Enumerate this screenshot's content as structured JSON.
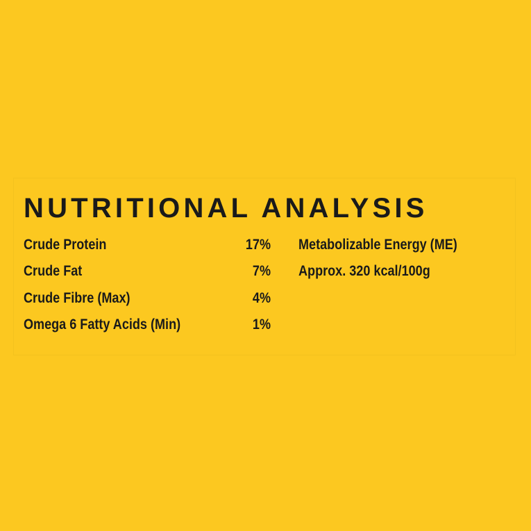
{
  "title": "NUTRITIONAL ANALYSIS",
  "rows": [
    [
      "Crude Protein",
      "17%"
    ],
    [
      "Crude Fat",
      "7%"
    ],
    [
      "Crude Fibre (Max)",
      "4%"
    ],
    [
      "Omega 6 Fatty Acids (Min)",
      "1%"
    ]
  ],
  "energy": {
    "label": "Metabolizable Energy (ME)",
    "value": "Approx. 320 kcal/100g"
  }
}
